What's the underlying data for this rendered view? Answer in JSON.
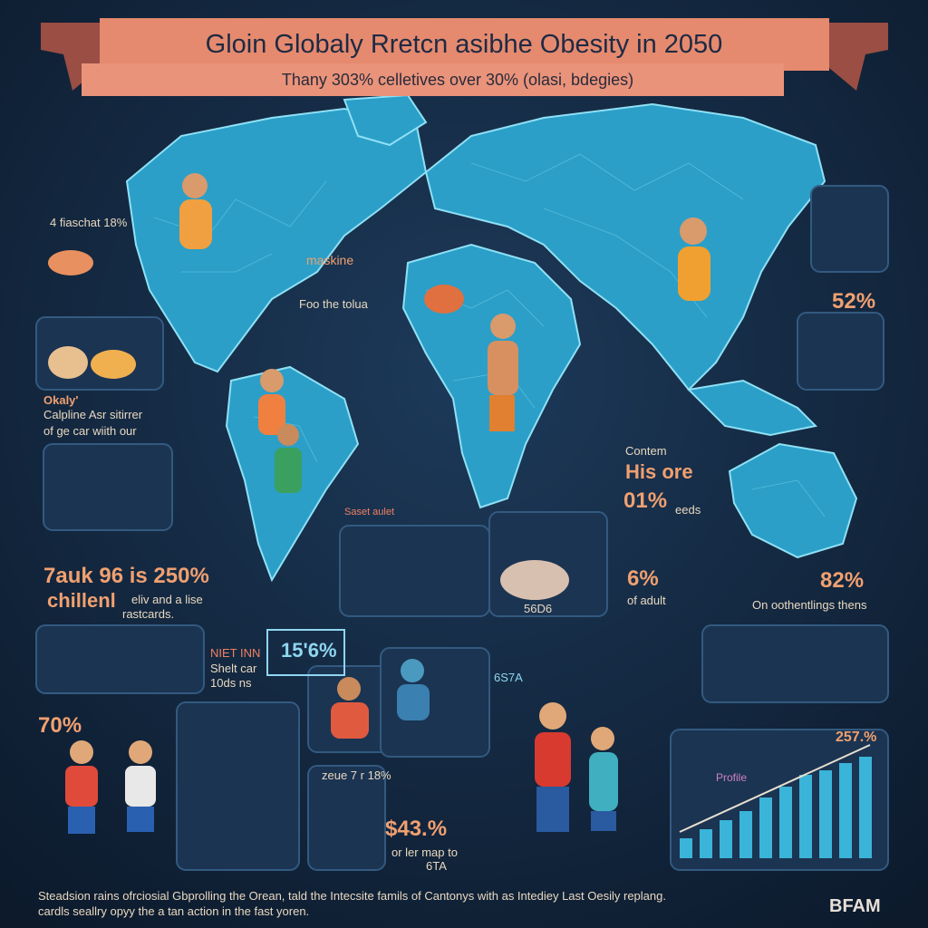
{
  "header": {
    "title": "Gloin Globaly Rretcn asibhe Obesity in 2050",
    "subtitle": "Thany 303% celletives over 30% (olasi, bdegies)"
  },
  "map_labels": {
    "top_left": "4 fiaschat 18%",
    "center_title": "maskine",
    "center_caption": "Foo the tolua"
  },
  "left": {
    "okaly": [
      "Okaly'",
      "Calpline  Asr sitirrer",
      "of ge car wiith our"
    ],
    "stat": "7auk 96 is 250%",
    "stat_label": "chillenl",
    "stat_note": [
      "eliv and a lise",
      "rastcards."
    ]
  },
  "right": {
    "stat_52": "52%",
    "contem": "Contem",
    "his": "His ore",
    "stat_01": "01%",
    "eeds": "eeds",
    "stat_6": "6%",
    "of_adult": "of adult",
    "stat_82": "82%",
    "oothent": "On oothentlings thens"
  },
  "bottom": {
    "saset": "Saset aulet",
    "panel_caption": "56D6",
    "stat_156": "15'6%",
    "niet": [
      "NIET INN",
      "Shelt car",
      "10ds ns"
    ],
    "code": "6S7A",
    "stat_70": "70%",
    "zeue": "zeue 7 r 18%",
    "stat_43": "$43.%",
    "map_note": [
      "or ler map to",
      "6TA"
    ],
    "stat_257": "257.%",
    "profile": "Profile"
  },
  "footer": {
    "lines": [
      "Steadsion rains ofrciosial Gbprolling the Orean, tald the Intecsite famils of Cantonys with as Intediey Last Oesily replang.",
      "cardls seallry opyy the a tan action in the fast yoren."
    ],
    "brand": "BFAM"
  }
}
